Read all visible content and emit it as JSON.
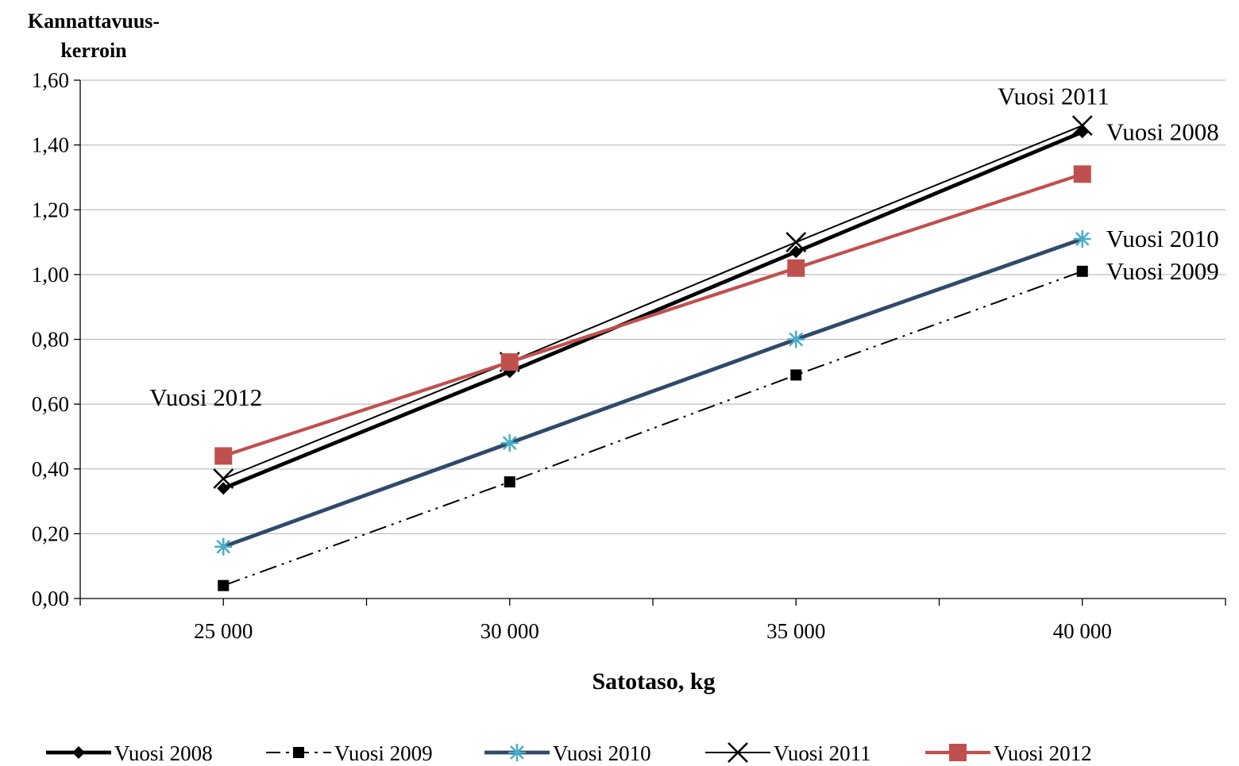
{
  "chart_data": {
    "type": "line",
    "ylabel_lines": [
      "Kannattavuus-",
      "kerroin"
    ],
    "xlabel": "Satotaso, kg",
    "x": [
      25000,
      30000,
      35000,
      40000
    ],
    "x_tick_labels": [
      "25 000",
      "30 000",
      "35 000",
      "40 000"
    ],
    "xlim": [
      22500,
      42500
    ],
    "ylim": [
      0,
      1.6
    ],
    "y_ticks": [
      0,
      0.2,
      0.4,
      0.6,
      0.8,
      1.0,
      1.2,
      1.4,
      1.6
    ],
    "y_tick_labels": [
      "0,00",
      "0,20",
      "0,40",
      "0,60",
      "0,80",
      "1,00",
      "1,20",
      "1,40",
      "1,60"
    ],
    "grid": "horizontal",
    "legend_position": "bottom",
    "series": [
      {
        "name": "Vuosi 2008",
        "values": [
          0.34,
          0.7,
          1.07,
          1.44
        ],
        "color": "#000000",
        "marker": "diamond",
        "line": "solid-thick"
      },
      {
        "name": "Vuosi 2009",
        "values": [
          0.04,
          0.36,
          0.69,
          1.01
        ],
        "color": "#000000",
        "marker": "square",
        "line": "dash-dot"
      },
      {
        "name": "Vuosi 2010",
        "values": [
          0.16,
          0.48,
          0.8,
          1.11
        ],
        "color": "#2E4A6B",
        "marker": "asterisk",
        "marker_color": "#4BACC6",
        "line": "solid-thick"
      },
      {
        "name": "Vuosi 2011",
        "values": [
          0.37,
          0.73,
          1.1,
          1.46
        ],
        "color": "#000000",
        "marker": "x",
        "line": "solid-thin"
      },
      {
        "name": "Vuosi 2012",
        "values": [
          0.44,
          0.73,
          1.02,
          1.31
        ],
        "color": "#C0504D",
        "marker": "square-large",
        "line": "solid-medium"
      }
    ],
    "annotations": [
      {
        "text": "Vuosi 2011",
        "x": 40000,
        "y": 1.55,
        "anchor": "end-shift"
      },
      {
        "text": "Vuosi 2008",
        "x": 40000,
        "y": 1.44,
        "anchor": "start"
      },
      {
        "text": "Vuosi 2010",
        "x": 40000,
        "y": 1.11,
        "anchor": "start"
      },
      {
        "text": "Vuosi 2009",
        "x": 40000,
        "y": 1.01,
        "anchor": "start"
      },
      {
        "text": "Vuosi 2012",
        "x": 25000,
        "y": 0.62,
        "anchor": "middle"
      }
    ]
  }
}
